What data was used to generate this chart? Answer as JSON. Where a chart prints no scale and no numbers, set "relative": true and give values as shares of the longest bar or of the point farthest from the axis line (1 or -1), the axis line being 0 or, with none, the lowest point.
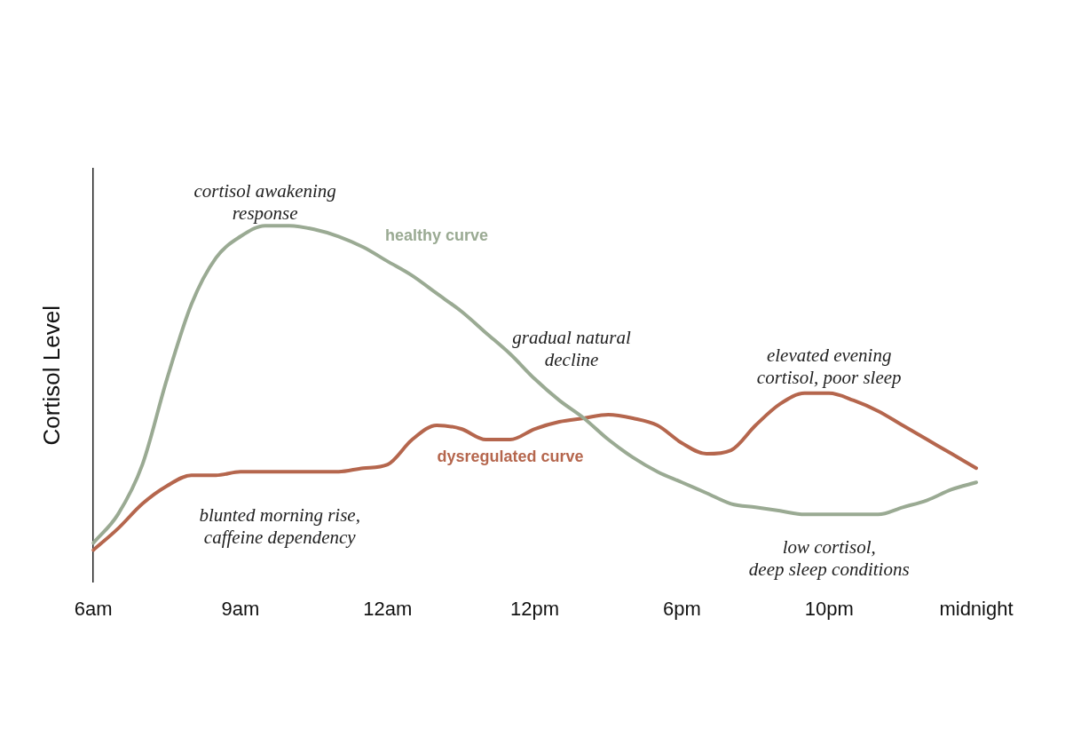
{
  "chart_data": {
    "type": "line",
    "relative": true,
    "ylabel": "Cortisol Level",
    "legend": false,
    "marker": "none",
    "line_style": "solid",
    "categories": [
      "6am",
      null,
      null,
      null,
      null,
      null,
      "9am",
      null,
      null,
      null,
      null,
      null,
      "12am",
      null,
      null,
      null,
      null,
      null,
      "12pm",
      null,
      null,
      null,
      null,
      null,
      "6pm",
      null,
      null,
      null,
      null,
      null,
      "10pm",
      null,
      null,
      null,
      null,
      null,
      "midnight"
    ],
    "series": [
      {
        "name": "healthy curve",
        "color": "#9aaa93",
        "values": [
          0.11,
          0.19,
          0.33,
          0.57,
          0.78,
          0.91,
          0.97,
          1.0,
          1.0,
          0.99,
          0.97,
          0.94,
          0.9,
          0.86,
          0.81,
          0.76,
          0.7,
          0.64,
          0.57,
          0.51,
          0.46,
          0.4,
          0.35,
          0.31,
          0.28,
          0.25,
          0.22,
          0.21,
          0.2,
          0.19,
          0.19,
          0.19,
          0.19,
          0.21,
          0.23,
          0.26,
          0.28
        ]
      },
      {
        "name": "dysregulated curve",
        "color": "#b5664d",
        "values": [
          0.09,
          0.15,
          0.22,
          0.27,
          0.3,
          0.3,
          0.31,
          0.31,
          0.31,
          0.31,
          0.31,
          0.32,
          0.33,
          0.4,
          0.44,
          0.43,
          0.4,
          0.4,
          0.43,
          0.45,
          0.46,
          0.47,
          0.46,
          0.44,
          0.39,
          0.36,
          0.37,
          0.44,
          0.5,
          0.53,
          0.53,
          0.51,
          0.48,
          0.44,
          0.4,
          0.36,
          0.32
        ]
      }
    ],
    "annotations": [
      "cortisol awakening response",
      "gradual natural decline",
      "elevated evening cortisol, poor sleep",
      "blunted morning rise, caffeine dependency",
      "low cortisol, deep sleep conditions"
    ]
  }
}
